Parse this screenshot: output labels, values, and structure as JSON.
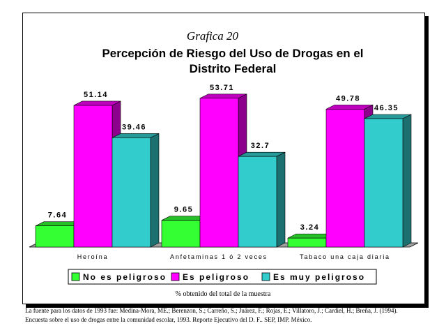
{
  "chart_data": {
    "type": "bar",
    "title": "Grafica 20",
    "subtitle_line1": "Percepción de Riesgo del Uso de Drogas en el",
    "subtitle_line2": "Distrito Federal",
    "categories": [
      "Heroína",
      "Anfetaminas 1 ó 2 veces",
      "Tabaco una caja diaria"
    ],
    "series": [
      {
        "name": "No es peligroso",
        "values": [
          7.64,
          9.65,
          3.24
        ],
        "labels": [
          "7.64",
          "9.65",
          "3.24"
        ],
        "color": "#33ff33"
      },
      {
        "name": "Es peligroso",
        "values": [
          51.14,
          53.71,
          49.78
        ],
        "labels": [
          "51.14",
          "53.71",
          "49.78"
        ],
        "color": "#ff00ff"
      },
      {
        "name": "Es muy peligroso",
        "values": [
          39.46,
          32.7,
          46.35
        ],
        "labels": [
          "39.46",
          "32.7",
          "46.35"
        ],
        "color": "#33cccc"
      }
    ],
    "xlabel": "% obtenido del total de la muestra",
    "ylabel": "",
    "ylim": [
      0,
      60
    ],
    "grid": false,
    "legend_position": "bottom"
  },
  "footnote": {
    "line1": "La fuente para los datos de 1993 fue: Medina-Mora, ME.; Berenzon, S.; Carreño, S.; Juárez, F.; Rojas, E.; Villatoro, J.; Cardiel, H.; Breña, J. (1994).",
    "line2": "Encuesta sobre el uso de drogas entre la comunidad escolar, 1993. Reporte Ejecutivo del D. F.. SEP, IMP. México."
  }
}
